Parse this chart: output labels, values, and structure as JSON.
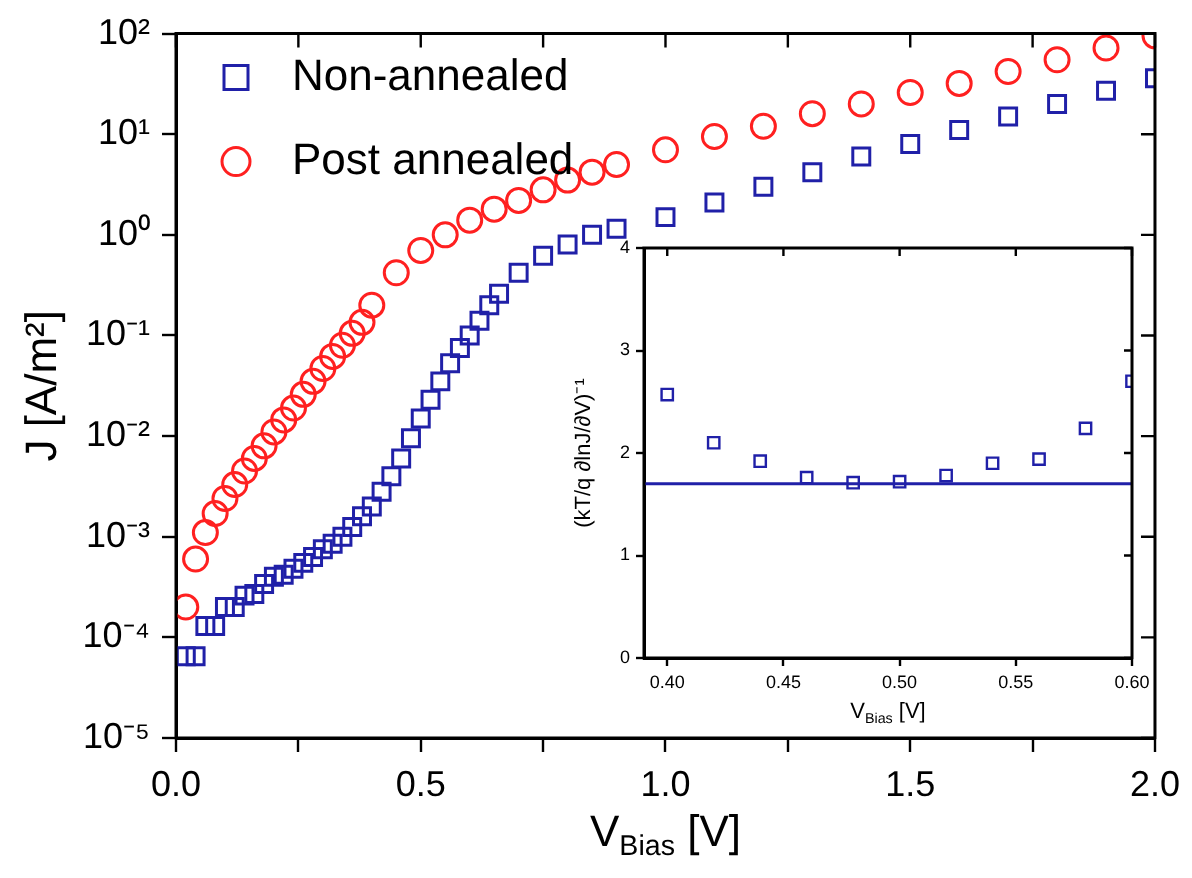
{
  "chart_data": [
    {
      "type": "scatter",
      "xlabel": "V$_{Bias}$ [V]",
      "ylabel": "J [A/m²]",
      "log": "y",
      "legend": "top left",
      "grid": false,
      "xlim": [
        0,
        2
      ],
      "xticks": [
        {
          "value": 0,
          "label": "0.0"
        },
        {
          "value": 0.25,
          "label": null
        },
        {
          "value": 0.5,
          "label": "0.5"
        },
        {
          "value": 0.75,
          "label": null
        },
        {
          "value": 1,
          "label": "1.0"
        },
        {
          "value": 1.25,
          "label": null
        },
        {
          "value": 1.5,
          "label": "1.5"
        },
        {
          "value": 1.75,
          "label": null
        },
        {
          "value": 2,
          "label": "2.0"
        }
      ],
      "ylim": [
        1e-05,
        100
      ],
      "yticks": [
        {
          "value": 1e-05,
          "label": "10⁻⁵"
        },
        {
          "value": 0.0001,
          "label": "10⁻⁴"
        },
        {
          "value": 0.001,
          "label": "10⁻³"
        },
        {
          "value": 0.01,
          "label": "10⁻²"
        },
        {
          "value": 0.1,
          "label": "10⁻¹"
        },
        {
          "value": 1,
          "label": "10⁰"
        },
        {
          "value": 10,
          "label": "10¹"
        },
        {
          "value": 100,
          "label": "10²"
        }
      ],
      "series": [
        {
          "name": "Non-annealed",
          "color": "#2020a8",
          "marker": "square",
          "x": [
            0.02,
            0.04,
            0.06,
            0.08,
            0.1,
            0.12,
            0.14,
            0.16,
            0.18,
            0.2,
            0.22,
            0.24,
            0.26,
            0.28,
            0.3,
            0.32,
            0.34,
            0.36,
            0.38,
            0.4,
            0.42,
            0.44,
            0.46,
            0.48,
            0.5,
            0.52,
            0.54,
            0.56,
            0.58,
            0.6,
            0.62,
            0.64,
            0.66,
            0.7,
            0.75,
            0.8,
            0.85,
            0.9,
            1,
            1.1,
            1.2,
            1.3,
            1.4,
            1.5,
            1.6,
            1.7,
            1.8,
            1.9,
            2
          ],
          "values": [
            6.5e-05,
            6.5e-05,
            0.00013,
            0.00013,
            0.0002,
            0.0002,
            0.00026,
            0.00027,
            0.00034,
            0.0004,
            0.00042,
            0.00048,
            0.00055,
            0.00063,
            0.00075,
            0.00085,
            0.001,
            0.00125,
            0.0016,
            0.002,
            0.0028,
            0.004,
            0.006,
            0.0095,
            0.015,
            0.023,
            0.035,
            0.053,
            0.075,
            0.1,
            0.14,
            0.2,
            0.26,
            0.42,
            0.62,
            0.8,
            1,
            1.15,
            1.5,
            2.1,
            3,
            4.2,
            6,
            8,
            11,
            15,
            20,
            27,
            36
          ]
        },
        {
          "name": "Post annealed",
          "color": "#ff2020",
          "marker": "circle",
          "x": [
            0.02,
            0.04,
            0.06,
            0.08,
            0.1,
            0.12,
            0.14,
            0.16,
            0.18,
            0.2,
            0.22,
            0.24,
            0.26,
            0.28,
            0.3,
            0.32,
            0.34,
            0.36,
            0.38,
            0.4,
            0.45,
            0.5,
            0.55,
            0.6,
            0.65,
            0.7,
            0.75,
            0.8,
            0.85,
            0.9,
            1,
            1.1,
            1.2,
            1.3,
            1.4,
            1.5,
            1.6,
            1.7,
            1.8,
            1.9,
            2
          ],
          "values": [
            0.0002,
            0.0006,
            0.0011,
            0.0017,
            0.0024,
            0.0033,
            0.0045,
            0.006,
            0.008,
            0.011,
            0.0145,
            0.019,
            0.026,
            0.035,
            0.047,
            0.062,
            0.08,
            0.105,
            0.135,
            0.2,
            0.42,
            0.7,
            1,
            1.4,
            1.8,
            2.2,
            2.8,
            3.5,
            4.2,
            5,
            7,
            9.5,
            12,
            16,
            20,
            26,
            32,
            42,
            55,
            72,
            95
          ]
        }
      ]
    },
    {
      "type": "scatter",
      "xlabel": "V$_{Bias}$ [V]",
      "ylabel": "(kT/q ∂lnJ/∂V)⁻¹",
      "grid": false,
      "xlim": [
        0.39,
        0.6
      ],
      "xticks": [
        {
          "value": 0.4,
          "label": "0.40"
        },
        {
          "value": 0.45,
          "label": "0.45"
        },
        {
          "value": 0.5,
          "label": "0.50"
        },
        {
          "value": 0.55,
          "label": "0.55"
        },
        {
          "value": 0.6,
          "label": "0.60"
        }
      ],
      "ylim": [
        0,
        4
      ],
      "yticks": [
        0,
        1,
        2,
        3,
        4
      ],
      "series": [
        {
          "color": "#2020a8",
          "marker": "square",
          "x": [
            0.4,
            0.42,
            0.44,
            0.46,
            0.48,
            0.5,
            0.52,
            0.54,
            0.56,
            0.58,
            0.6
          ],
          "values": [
            2.57,
            2.1,
            1.92,
            1.76,
            1.71,
            1.72,
            1.78,
            1.9,
            1.94,
            2.24,
            2.7
          ]
        }
      ],
      "ref_lines": [
        {
          "axis": "y",
          "value": 1.7,
          "color": "#2020a8"
        }
      ]
    }
  ]
}
